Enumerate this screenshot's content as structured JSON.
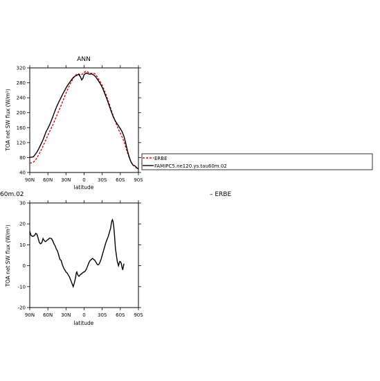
{
  "chart_data": [
    {
      "type": "line",
      "title": "ANN",
      "xlabel": "latitude",
      "ylabel": "TOA net SW flux (W/m²)",
      "xlim": [
        90,
        -90
      ],
      "ylim": [
        40,
        320
      ],
      "x_ticks": [
        90,
        60,
        30,
        0,
        -30,
        -60,
        -90
      ],
      "x_tick_labels": [
        "90N",
        "60N",
        "30N",
        "0",
        "30S",
        "60S",
        "90S"
      ],
      "y_ticks": [
        40,
        80,
        120,
        160,
        200,
        240,
        280,
        320
      ],
      "y_tick_labels": [
        "40",
        "80",
        "120",
        "160",
        "200",
        "240",
        "280",
        "320"
      ],
      "legend_position": "right",
      "series": [
        {
          "name": "ERBE",
          "color": "#e8000b",
          "dash": "dashed",
          "points": [
            [
              90,
              65
            ],
            [
              87,
              66
            ],
            [
              84,
              68
            ],
            [
              81,
              72
            ],
            [
              78,
              80
            ],
            [
              75,
              88
            ],
            [
              72,
              97
            ],
            [
              69,
              107
            ],
            [
              66,
              118
            ],
            [
              63,
              128
            ],
            [
              60,
              140
            ],
            [
              57,
              150
            ],
            [
              54,
              160
            ],
            [
              51,
              170
            ],
            [
              48,
              182
            ],
            [
              45,
              193
            ],
            [
              42,
              205
            ],
            [
              39,
              216
            ],
            [
              36,
              228
            ],
            [
              33,
              240
            ],
            [
              30,
              252
            ],
            [
              27,
              263
            ],
            [
              24,
              274
            ],
            [
              21,
              283
            ],
            [
              18,
              292
            ],
            [
              15,
              299
            ],
            [
              12,
              303
            ],
            [
              9,
              304
            ],
            [
              6,
              301
            ],
            [
              3,
              303
            ],
            [
              0,
              308
            ],
            [
              -3,
              311
            ],
            [
              -6,
              309
            ],
            [
              -9,
              307
            ],
            [
              -12,
              305
            ],
            [
              -15,
              306
            ],
            [
              -18,
              304
            ],
            [
              -21,
              298
            ],
            [
              -24,
              290
            ],
            [
              -27,
              282
            ],
            [
              -30,
              273
            ],
            [
              -33,
              262
            ],
            [
              -36,
              250
            ],
            [
              -39,
              236
            ],
            [
              -42,
              222
            ],
            [
              -45,
              207
            ],
            [
              -48,
              193
            ],
            [
              -51,
              180
            ],
            [
              -54,
              167
            ],
            [
              -57,
              155
            ],
            [
              -60,
              145
            ],
            [
              -63,
              135
            ],
            [
              -66,
              123
            ],
            [
              -69,
              108
            ],
            [
              -72,
              92
            ],
            [
              -75,
              78
            ],
            [
              -78,
              68
            ],
            [
              -81,
              60
            ],
            [
              -84,
              55
            ],
            [
              -87,
              52
            ],
            [
              -90,
              50
            ]
          ]
        },
        {
          "name": "FAMIPC5.ne120.ys.tau60m.02",
          "color": "#000000",
          "dash": "solid",
          "points": [
            [
              90,
              81
            ],
            [
              87,
              81
            ],
            [
              84,
              82
            ],
            [
              81,
              88
            ],
            [
              78,
              95
            ],
            [
              75,
              104
            ],
            [
              72,
              114
            ],
            [
              69,
              124
            ],
            [
              66,
              136
            ],
            [
              63,
              149
            ],
            [
              60,
              158
            ],
            [
              57,
              168
            ],
            [
              54,
              180
            ],
            [
              51,
              193
            ],
            [
              48,
              206
            ],
            [
              45,
              218
            ],
            [
              42,
              228
            ],
            [
              39,
              238
            ],
            [
              36,
              248
            ],
            [
              33,
              257
            ],
            [
              30,
              266
            ],
            [
              27,
              274
            ],
            [
              24,
              281
            ],
            [
              21,
              288
            ],
            [
              18,
              294
            ],
            [
              15,
              298
            ],
            [
              12,
              300
            ],
            [
              9,
              303
            ],
            [
              6,
              296
            ],
            [
              4,
              288
            ],
            [
              2,
              292
            ],
            [
              0,
              302
            ],
            [
              -3,
              306
            ],
            [
              -6,
              305
            ],
            [
              -9,
              303
            ],
            [
              -12,
              304
            ],
            [
              -15,
              302
            ],
            [
              -18,
              298
            ],
            [
              -21,
              292
            ],
            [
              -24,
              285
            ],
            [
              -27,
              277
            ],
            [
              -30,
              268
            ],
            [
              -33,
              256
            ],
            [
              -36,
              244
            ],
            [
              -39,
              231
            ],
            [
              -42,
              217
            ],
            [
              -45,
              203
            ],
            [
              -48,
              190
            ],
            [
              -51,
              180
            ],
            [
              -54,
              172
            ],
            [
              -57,
              165
            ],
            [
              -60,
              157
            ],
            [
              -63,
              149
            ],
            [
              -66,
              137
            ],
            [
              -69,
              118
            ],
            [
              -72,
              97
            ],
            [
              -75,
              80
            ],
            [
              -78,
              67
            ],
            [
              -81,
              60
            ],
            [
              -84,
              58
            ],
            [
              -87,
              53
            ],
            [
              -90,
              49
            ]
          ]
        }
      ]
    },
    {
      "type": "line",
      "title_left": "60m.02",
      "title_right": "– ERBE",
      "xlabel": "latitude",
      "ylabel": "TOA net SW flux (W/m²)",
      "xlim": [
        90,
        -90
      ],
      "ylim": [
        -20,
        30
      ],
      "x_ticks": [
        90,
        60,
        30,
        0,
        -30,
        -60,
        -90
      ],
      "x_tick_labels": [
        "90N",
        "60N",
        "30N",
        "0",
        "30S",
        "60S",
        "90S"
      ],
      "y_ticks": [
        -20,
        -10,
        0,
        10,
        20,
        30
      ],
      "y_tick_labels": [
        "-20",
        "-10",
        "0",
        "10",
        "20",
        "30"
      ],
      "series": [
        {
          "color": "#000000",
          "dash": "solid",
          "points": [
            [
              90,
              16.5
            ],
            [
              88,
              14.5
            ],
            [
              85,
              14
            ],
            [
              82,
              14.5
            ],
            [
              80,
              15.5
            ],
            [
              78,
              15
            ],
            [
              76,
              13
            ],
            [
              74,
              11
            ],
            [
              72,
              10.5
            ],
            [
              70,
              11
            ],
            [
              68,
              13
            ],
            [
              66,
              12
            ],
            [
              64,
              11.5
            ],
            [
              62,
              12
            ],
            [
              60,
              12.5
            ],
            [
              57,
              13.2
            ],
            [
              54,
              13
            ],
            [
              52,
              12
            ],
            [
              50,
              10.5
            ],
            [
              48,
              9.5
            ],
            [
              46,
              8
            ],
            [
              44,
              7
            ],
            [
              42,
              5
            ],
            [
              40,
              3
            ],
            [
              38,
              2.5
            ],
            [
              36,
              0.5
            ],
            [
              34,
              -1
            ],
            [
              32,
              -2
            ],
            [
              30,
              -3
            ],
            [
              28,
              -3.5
            ],
            [
              26,
              -4.5
            ],
            [
              24,
              -5.5
            ],
            [
              22,
              -7
            ],
            [
              20,
              -8.5
            ],
            [
              18,
              -10
            ],
            [
              16,
              -8
            ],
            [
              14,
              -5.5
            ],
            [
              13,
              -3.5
            ],
            [
              12,
              -3
            ],
            [
              11,
              -4
            ],
            [
              10,
              -4.5
            ],
            [
              9,
              -5
            ],
            [
              8,
              -5
            ],
            [
              7,
              -4.5
            ],
            [
              5,
              -4
            ],
            [
              3,
              -3.5
            ],
            [
              1,
              -3
            ],
            [
              0,
              -3
            ],
            [
              -2,
              -2.5
            ],
            [
              -4,
              -1.5
            ],
            [
              -6,
              0
            ],
            [
              -8,
              1.5
            ],
            [
              -10,
              2.5
            ],
            [
              -12,
              3
            ],
            [
              -14,
              3.5
            ],
            [
              -16,
              3
            ],
            [
              -18,
              2.5
            ],
            [
              -20,
              1.5
            ],
            [
              -22,
              0.5
            ],
            [
              -24,
              0.5
            ],
            [
              -26,
              1.5
            ],
            [
              -28,
              3
            ],
            [
              -30,
              5
            ],
            [
              -32,
              7
            ],
            [
              -34,
              9
            ],
            [
              -36,
              11
            ],
            [
              -38,
              12.5
            ],
            [
              -40,
              14
            ],
            [
              -42,
              16
            ],
            [
              -44,
              18
            ],
            [
              -45,
              20
            ],
            [
              -46,
              21.5
            ],
            [
              -47,
              22
            ],
            [
              -48,
              21
            ],
            [
              -49,
              19
            ],
            [
              -50,
              16
            ],
            [
              -51,
              12
            ],
            [
              -52,
              8
            ],
            [
              -53,
              6
            ],
            [
              -54,
              4
            ],
            [
              -55,
              2
            ],
            [
              -56,
              1
            ],
            [
              -57,
              0
            ],
            [
              -58,
              1
            ],
            [
              -59,
              2
            ],
            [
              -60,
              2
            ],
            [
              -61,
              1.5
            ],
            [
              -62,
              0.5
            ],
            [
              -63,
              -1
            ],
            [
              -64,
              -2
            ],
            [
              -65,
              -0.5
            ],
            [
              -66,
              1
            ]
          ]
        }
      ]
    }
  ]
}
